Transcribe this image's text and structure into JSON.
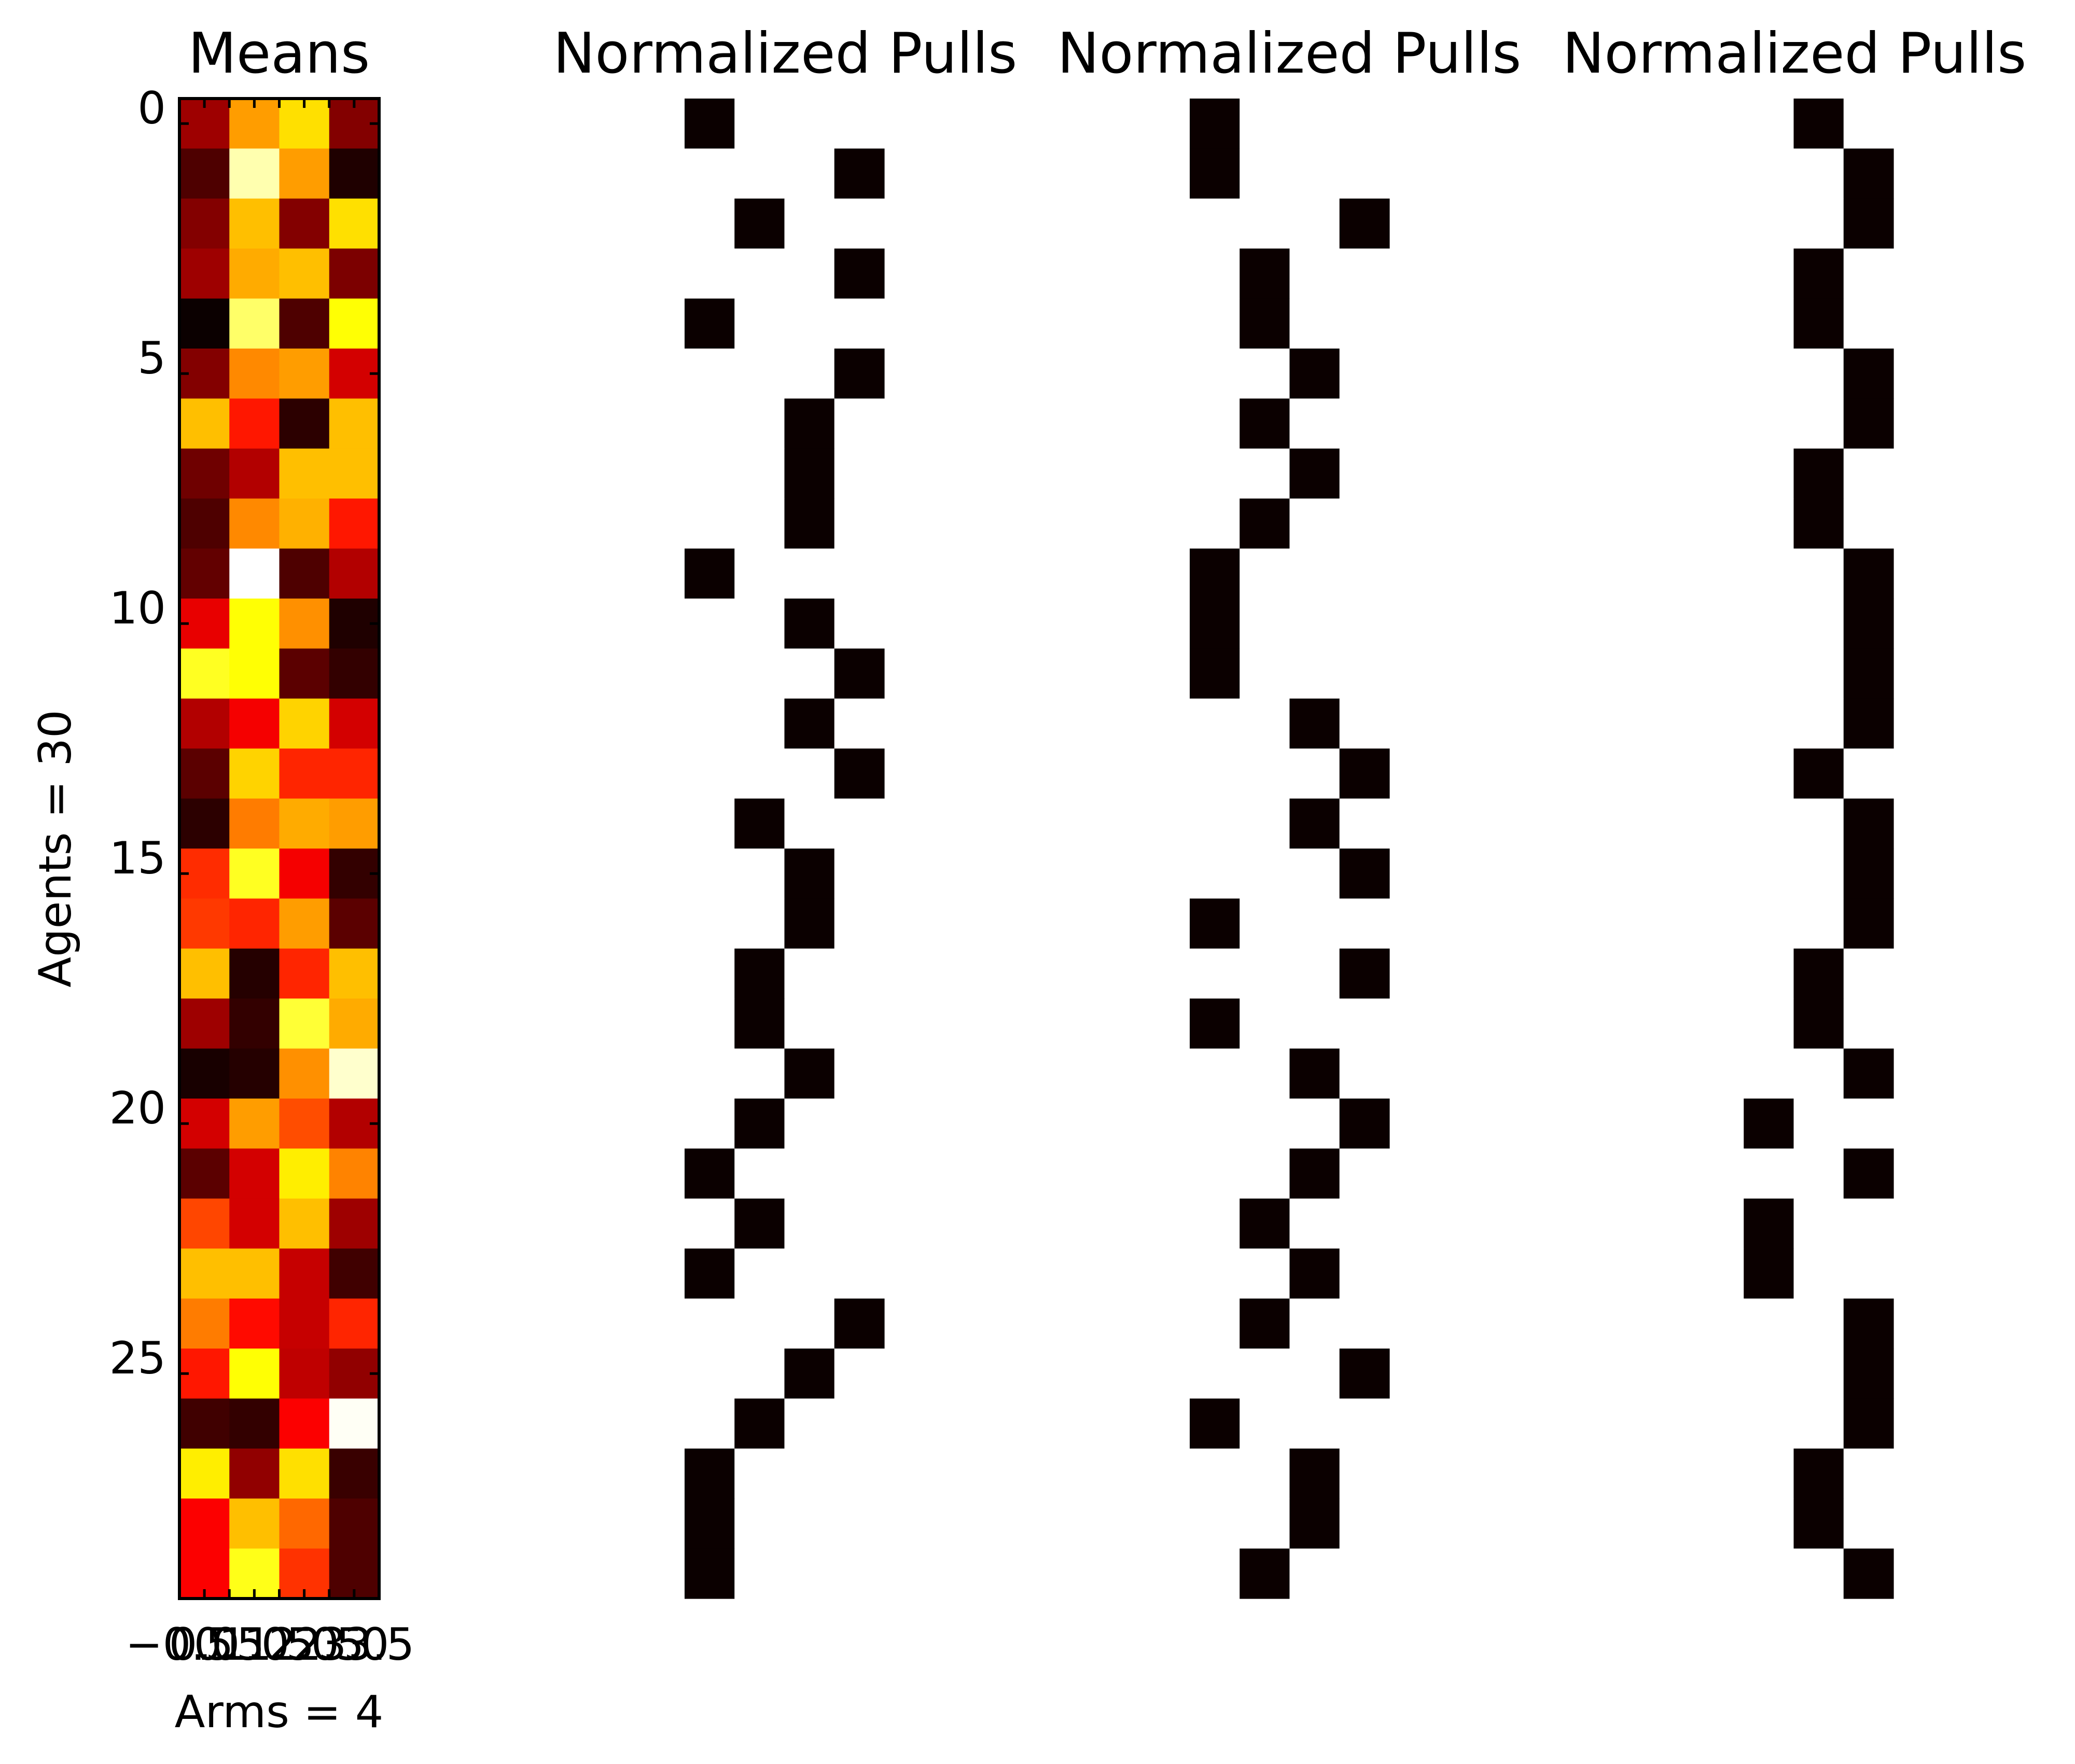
{
  "chart_data": [
    {
      "type": "heatmap",
      "title": "Means",
      "xlabel": "Arms = 4",
      "ylabel": "Agents = 30",
      "colormap": "hot",
      "frame": true,
      "grid": false,
      "xticks": [
        "−0.5",
        "0.0",
        "0.5",
        "1.0",
        "1.5",
        "2.0",
        "2.5",
        "3.0",
        "3.5"
      ],
      "yticks": [
        "0",
        "5",
        "10",
        "15",
        "20",
        "25"
      ],
      "values": [
        [
          0.22,
          0.6,
          0.7,
          0.18
        ],
        [
          0.1,
          0.92,
          0.6,
          0.03
        ],
        [
          0.18,
          0.65,
          0.18,
          0.7
        ],
        [
          0.22,
          0.62,
          0.65,
          0.17
        ],
        [
          0.0,
          0.85,
          0.1,
          0.75
        ],
        [
          0.18,
          0.57,
          0.6,
          0.3
        ],
        [
          0.65,
          0.4,
          0.05,
          0.65
        ],
        [
          0.15,
          0.25,
          0.65,
          0.65
        ],
        [
          0.1,
          0.57,
          0.63,
          0.4
        ],
        [
          0.13,
          1.0,
          0.1,
          0.25
        ],
        [
          0.33,
          0.75,
          0.58,
          0.03
        ],
        [
          0.78,
          0.75,
          0.12,
          0.06
        ],
        [
          0.25,
          0.35,
          0.68,
          0.3
        ],
        [
          0.12,
          0.68,
          0.42,
          0.42
        ],
        [
          0.05,
          0.55,
          0.62,
          0.6
        ],
        [
          0.43,
          0.78,
          0.35,
          0.06
        ],
        [
          0.45,
          0.42,
          0.6,
          0.12
        ],
        [
          0.65,
          0.04,
          0.42,
          0.65
        ],
        [
          0.22,
          0.06,
          0.8,
          0.62
        ],
        [
          0.02,
          0.04,
          0.58,
          0.95
        ],
        [
          0.3,
          0.6,
          0.48,
          0.25
        ],
        [
          0.12,
          0.3,
          0.72,
          0.56
        ],
        [
          0.47,
          0.3,
          0.65,
          0.22
        ],
        [
          0.65,
          0.65,
          0.28,
          0.08
        ],
        [
          0.55,
          0.38,
          0.28,
          0.42
        ],
        [
          0.4,
          0.75,
          0.27,
          0.2
        ],
        [
          0.08,
          0.06,
          0.36,
          0.99
        ],
        [
          0.72,
          0.2,
          0.7,
          0.07
        ],
        [
          0.36,
          0.65,
          0.52,
          0.1
        ],
        [
          0.36,
          0.77,
          0.44,
          0.1
        ]
      ]
    },
    {
      "type": "heatmap",
      "title": "Normalized Pulls",
      "colormap": "hot",
      "frame": false,
      "grid": false,
      "values": [
        [
          0,
          1,
          1,
          1
        ],
        [
          1,
          1,
          1,
          0
        ],
        [
          1,
          0,
          1,
          1
        ],
        [
          1,
          1,
          1,
          0
        ],
        [
          0,
          1,
          1,
          1
        ],
        [
          1,
          1,
          1,
          0
        ],
        [
          1,
          1,
          0,
          1
        ],
        [
          1,
          1,
          0,
          1
        ],
        [
          1,
          1,
          0,
          1
        ],
        [
          0,
          1,
          1,
          1
        ],
        [
          1,
          1,
          0,
          1
        ],
        [
          1,
          1,
          1,
          0
        ],
        [
          1,
          1,
          0,
          1
        ],
        [
          1,
          1,
          1,
          0
        ],
        [
          1,
          0,
          1,
          1
        ],
        [
          1,
          1,
          0,
          1
        ],
        [
          1,
          1,
          0,
          1
        ],
        [
          1,
          0,
          1,
          1
        ],
        [
          1,
          0,
          1,
          1
        ],
        [
          1,
          1,
          0,
          1
        ],
        [
          1,
          0,
          1,
          1
        ],
        [
          0,
          1,
          1,
          1
        ],
        [
          1,
          0,
          1,
          1
        ],
        [
          0,
          1,
          1,
          1
        ],
        [
          1,
          1,
          1,
          0
        ],
        [
          1,
          1,
          0,
          1
        ],
        [
          1,
          0,
          1,
          1
        ],
        [
          0,
          1,
          1,
          1
        ],
        [
          0,
          1,
          1,
          1
        ],
        [
          0,
          1,
          1,
          1
        ]
      ]
    },
    {
      "type": "heatmap",
      "title": "Normalized Pulls",
      "colormap": "hot",
      "frame": false,
      "grid": false,
      "values": [
        [
          0,
          1,
          1,
          1
        ],
        [
          0,
          1,
          1,
          1
        ],
        [
          1,
          1,
          1,
          0
        ],
        [
          1,
          0,
          1,
          1
        ],
        [
          1,
          0,
          1,
          1
        ],
        [
          1,
          1,
          0,
          1
        ],
        [
          1,
          0,
          1,
          1
        ],
        [
          1,
          1,
          0,
          1
        ],
        [
          1,
          0,
          1,
          1
        ],
        [
          0,
          1,
          1,
          1
        ],
        [
          0,
          1,
          1,
          1
        ],
        [
          0,
          1,
          1,
          1
        ],
        [
          1,
          1,
          0,
          1
        ],
        [
          1,
          1,
          1,
          0
        ],
        [
          1,
          1,
          0,
          1
        ],
        [
          1,
          1,
          1,
          0
        ],
        [
          0,
          1,
          1,
          1
        ],
        [
          1,
          1,
          1,
          0
        ],
        [
          0,
          1,
          1,
          1
        ],
        [
          1,
          1,
          0,
          1
        ],
        [
          1,
          1,
          1,
          0
        ],
        [
          1,
          1,
          0,
          1
        ],
        [
          1,
          0,
          1,
          1
        ],
        [
          1,
          1,
          0,
          1
        ],
        [
          1,
          0,
          1,
          1
        ],
        [
          1,
          1,
          1,
          0
        ],
        [
          0,
          1,
          1,
          1
        ],
        [
          1,
          1,
          0,
          1
        ],
        [
          1,
          1,
          0,
          1
        ],
        [
          1,
          0,
          1,
          1
        ]
      ]
    },
    {
      "type": "heatmap",
      "title": "Normalized Pulls",
      "colormap": "hot",
      "frame": false,
      "grid": false,
      "values": [
        [
          1,
          1,
          0,
          1
        ],
        [
          1,
          1,
          1,
          0
        ],
        [
          1,
          1,
          1,
          0
        ],
        [
          1,
          1,
          0,
          1
        ],
        [
          1,
          1,
          0,
          1
        ],
        [
          1,
          1,
          1,
          0
        ],
        [
          1,
          1,
          1,
          0
        ],
        [
          1,
          1,
          0,
          1
        ],
        [
          1,
          1,
          0,
          1
        ],
        [
          1,
          1,
          1,
          0
        ],
        [
          1,
          1,
          1,
          0
        ],
        [
          1,
          1,
          1,
          0
        ],
        [
          1,
          1,
          1,
          0
        ],
        [
          1,
          1,
          0,
          1
        ],
        [
          1,
          1,
          1,
          0
        ],
        [
          1,
          1,
          1,
          0
        ],
        [
          1,
          1,
          1,
          0
        ],
        [
          1,
          1,
          0,
          1
        ],
        [
          1,
          1,
          0,
          1
        ],
        [
          1,
          1,
          1,
          0
        ],
        [
          1,
          0,
          1,
          1
        ],
        [
          1,
          1,
          1,
          0
        ],
        [
          1,
          0,
          1,
          1
        ],
        [
          1,
          0,
          1,
          1
        ],
        [
          1,
          1,
          1,
          0
        ],
        [
          1,
          1,
          1,
          0
        ],
        [
          1,
          1,
          1,
          0
        ],
        [
          1,
          1,
          0,
          1
        ],
        [
          1,
          1,
          0,
          1
        ],
        [
          1,
          1,
          1,
          0
        ]
      ]
    }
  ]
}
